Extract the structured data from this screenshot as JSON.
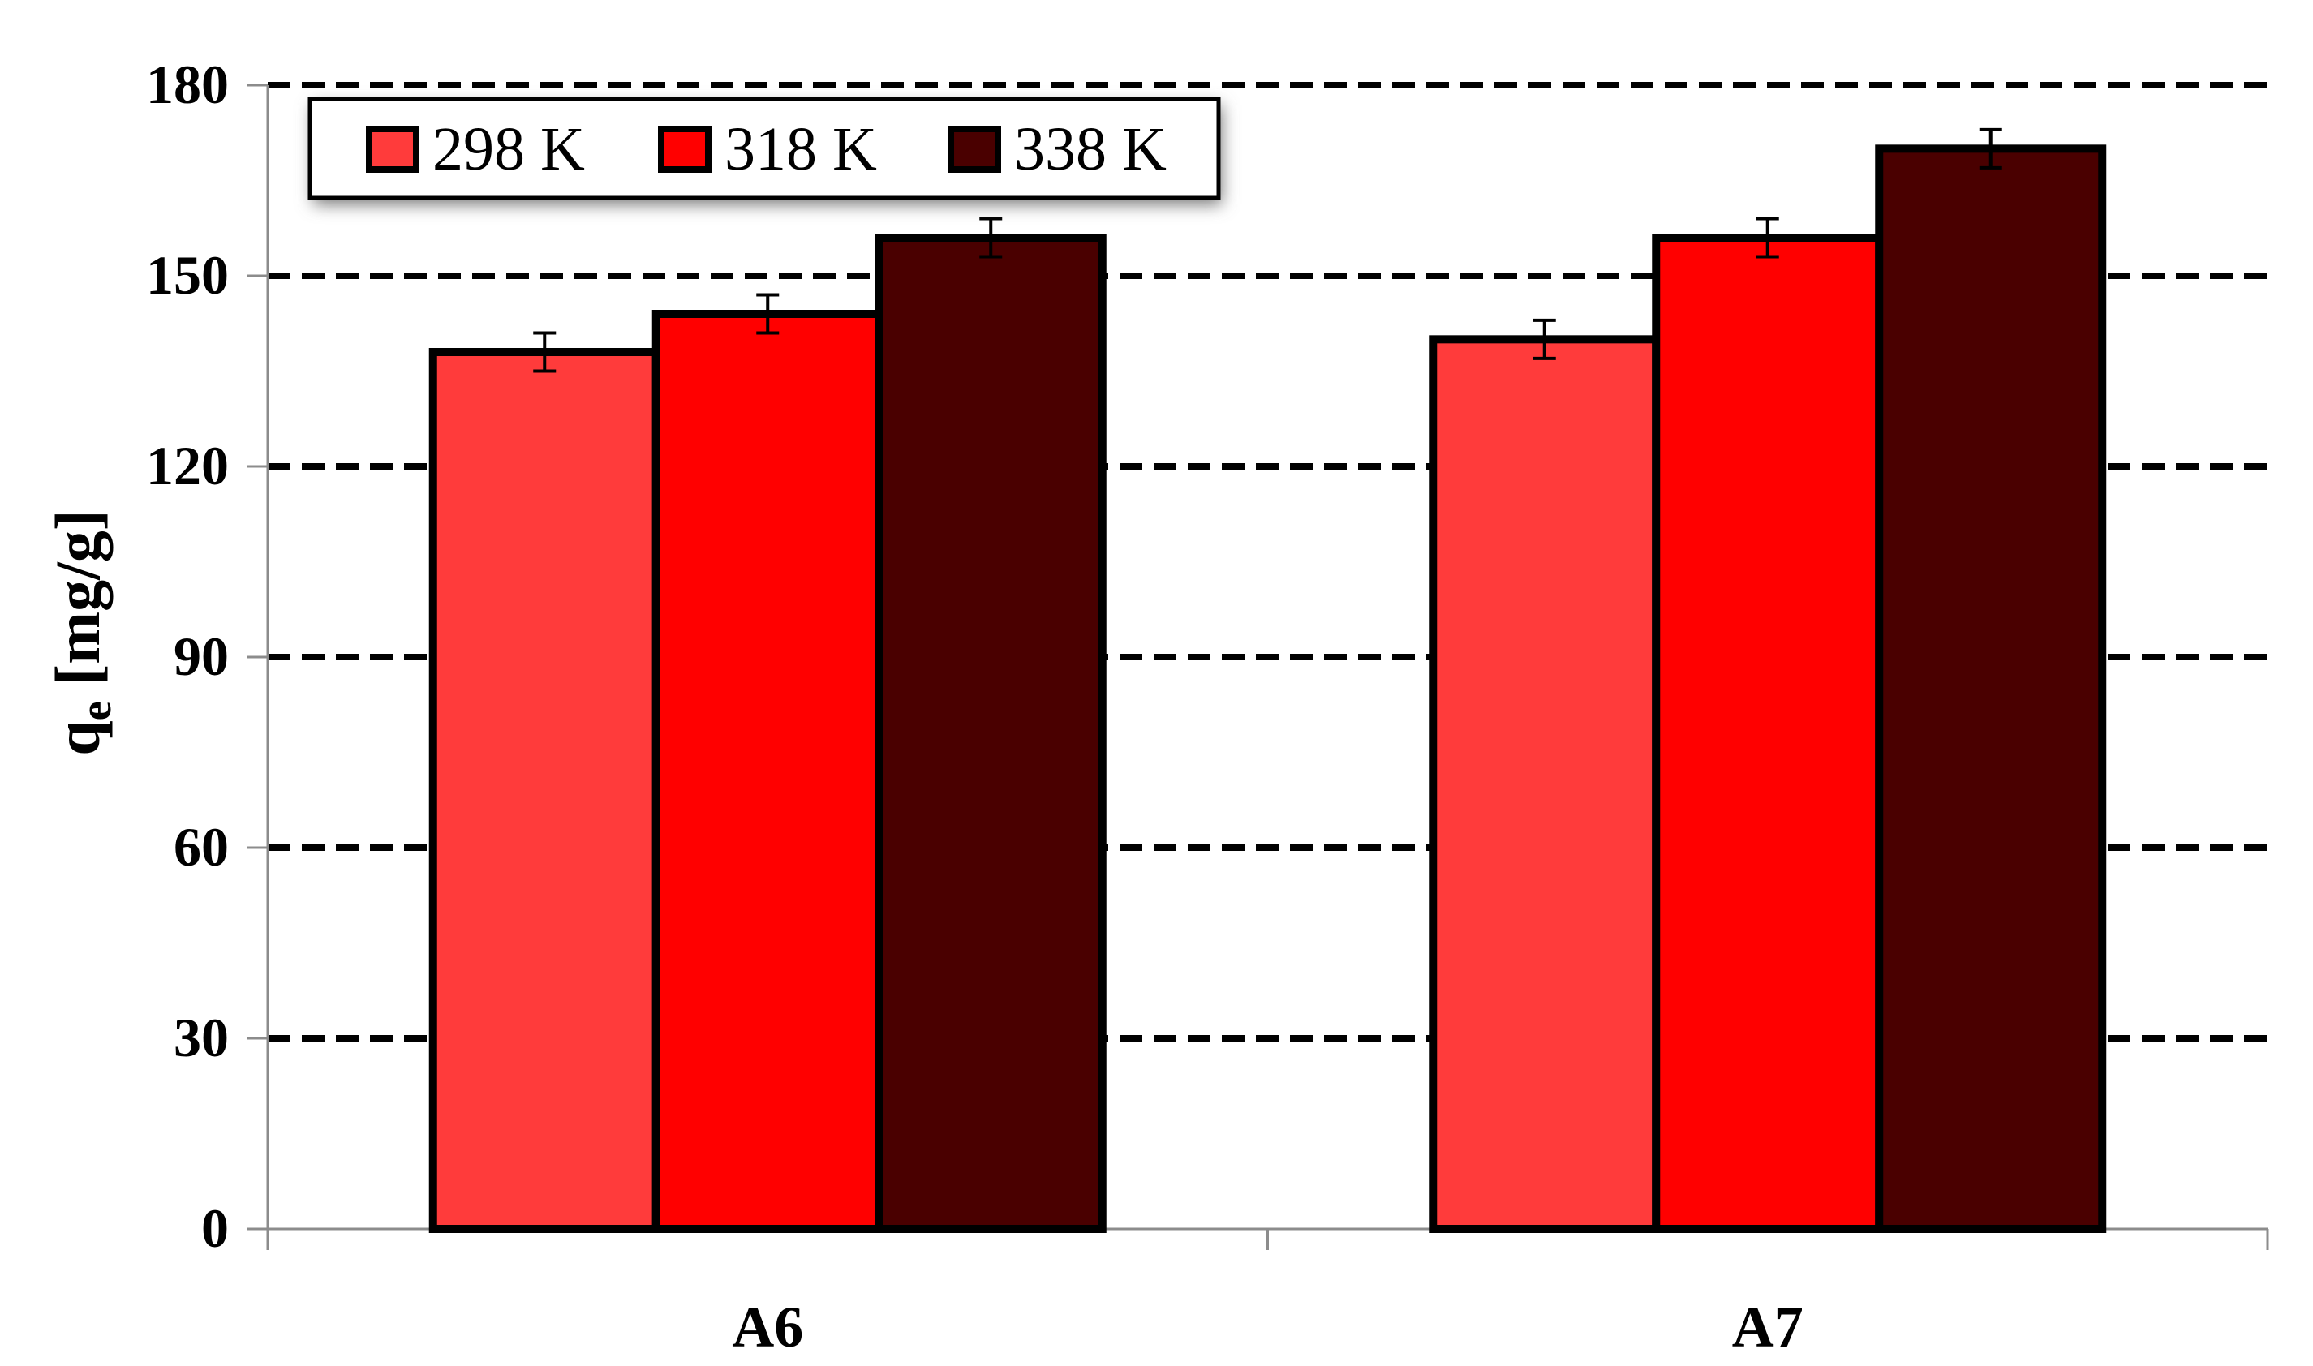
{
  "chart_data": {
    "type": "bar",
    "categories": [
      "A6",
      "A7"
    ],
    "series": [
      {
        "name": "298 K",
        "values": [
          138,
          140
        ],
        "errors": [
          3,
          3
        ],
        "color": "#FF3B3B"
      },
      {
        "name": "318 K",
        "values": [
          144,
          156
        ],
        "errors": [
          3,
          3
        ],
        "color": "#FF0000"
      },
      {
        "name": "338 K",
        "values": [
          156,
          170
        ],
        "errors": [
          3,
          3
        ],
        "color": "#4A0000"
      }
    ],
    "title": "",
    "xlabel": "",
    "ylabel_main": "q",
    "ylabel_sub": "e",
    "ylabel_unit": " [mg/g]",
    "ylim": [
      0,
      180
    ],
    "yticks": [
      0,
      30,
      60,
      90,
      120,
      150,
      180
    ],
    "grid": true,
    "grid_style": "dashed",
    "legend_position": "top-left"
  }
}
